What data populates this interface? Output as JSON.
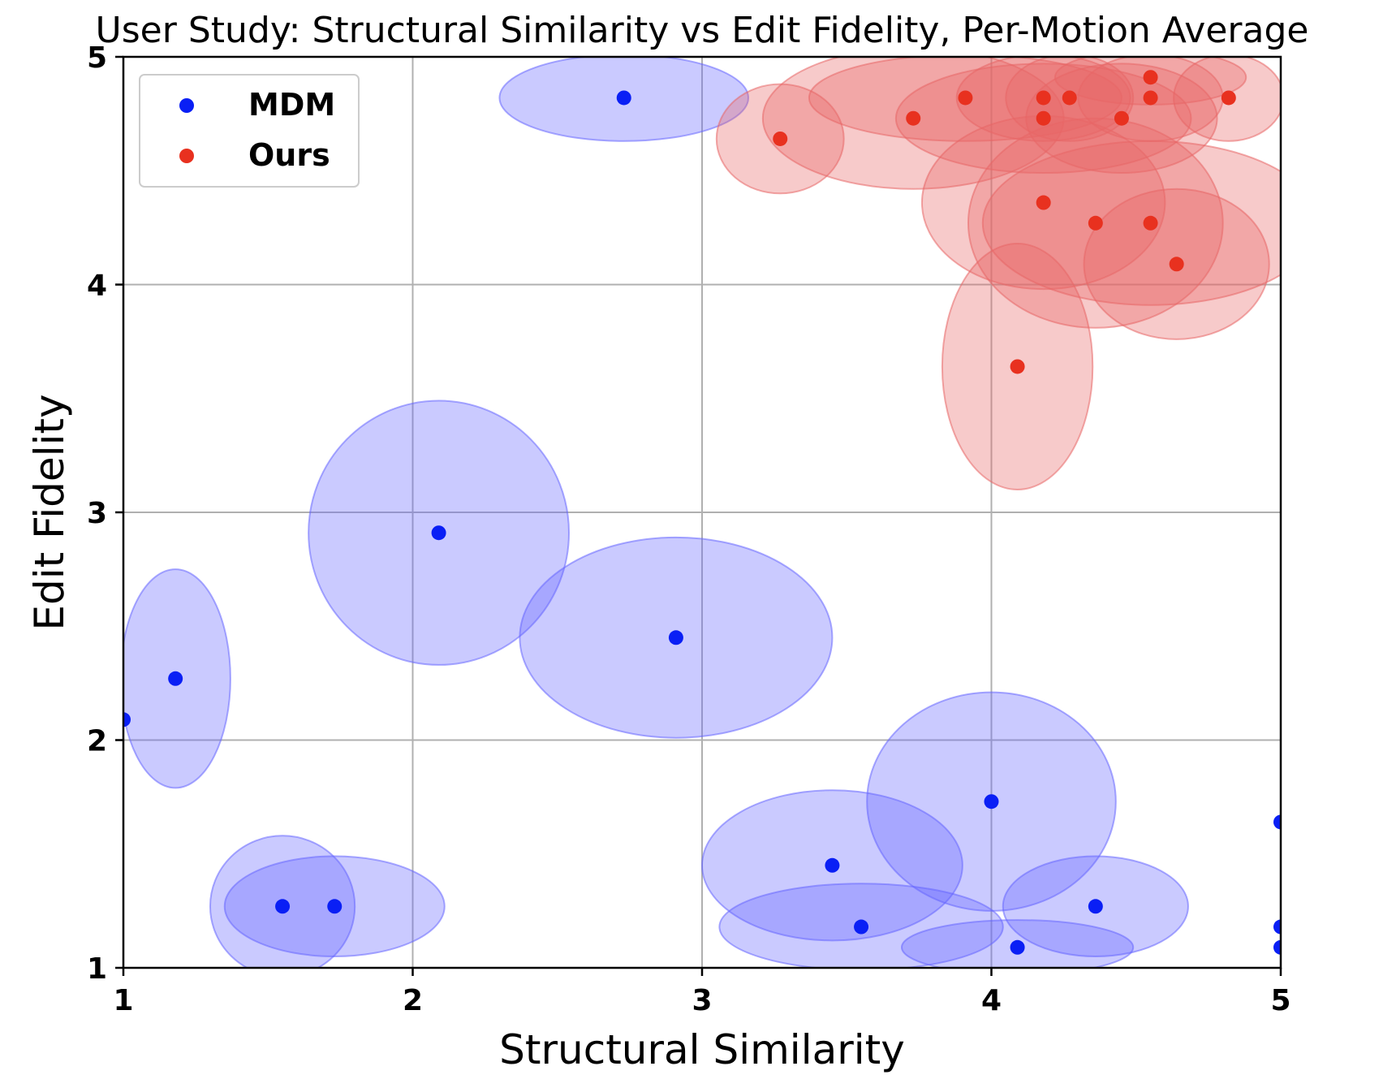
{
  "chart_data": {
    "type": "scatter",
    "title": "User Study: Structural Similarity vs Edit Fidelity, Per-Motion Average",
    "xlabel": "Structural Similarity",
    "ylabel": "Edit Fidelity",
    "xlim": [
      1,
      5
    ],
    "ylim": [
      1,
      5
    ],
    "xticks": [
      1,
      2,
      3,
      4,
      5
    ],
    "yticks": [
      1,
      2,
      3,
      4,
      5
    ],
    "grid": true,
    "legend_position": "top-left",
    "series": [
      {
        "name": "MDM",
        "color": "#0a1ff5",
        "ellipse_color": "#6666ff",
        "points": [
          {
            "x": 1.0,
            "y": 2.09,
            "sx": 0.0,
            "sy": 0.0
          },
          {
            "x": 1.18,
            "y": 2.27,
            "sx": 0.19,
            "sy": 0.48
          },
          {
            "x": 1.55,
            "y": 1.27,
            "sx": 0.25,
            "sy": 0.31
          },
          {
            "x": 1.73,
            "y": 1.27,
            "sx": 0.38,
            "sy": 0.22
          },
          {
            "x": 2.09,
            "y": 2.91,
            "sx": 0.45,
            "sy": 0.58
          },
          {
            "x": 2.73,
            "y": 4.82,
            "sx": 0.43,
            "sy": 0.19
          },
          {
            "x": 2.91,
            "y": 2.45,
            "sx": 0.54,
            "sy": 0.44
          },
          {
            "x": 3.45,
            "y": 1.45,
            "sx": 0.45,
            "sy": 0.33
          },
          {
            "x": 3.55,
            "y": 1.18,
            "sx": 0.49,
            "sy": 0.19
          },
          {
            "x": 4.0,
            "y": 1.73,
            "sx": 0.43,
            "sy": 0.48
          },
          {
            "x": 4.09,
            "y": 1.09,
            "sx": 0.4,
            "sy": 0.12
          },
          {
            "x": 4.36,
            "y": 1.27,
            "sx": 0.32,
            "sy": 0.22
          },
          {
            "x": 5.0,
            "y": 1.64,
            "sx": 0.0,
            "sy": 0.0
          },
          {
            "x": 5.0,
            "y": 1.18,
            "sx": 0.0,
            "sy": 0.0
          },
          {
            "x": 5.0,
            "y": 1.09,
            "sx": 0.0,
            "sy": 0.0
          }
        ]
      },
      {
        "name": "Ours",
        "color": "#e8311f",
        "ellipse_color": "#e86666",
        "points": [
          {
            "x": 3.27,
            "y": 4.64,
            "sx": 0.22,
            "sy": 0.24
          },
          {
            "x": 3.73,
            "y": 4.73,
            "sx": 0.52,
            "sy": 0.31
          },
          {
            "x": 3.91,
            "y": 4.82,
            "sx": 0.54,
            "sy": 0.19
          },
          {
            "x": 4.09,
            "y": 3.64,
            "sx": 0.26,
            "sy": 0.54
          },
          {
            "x": 4.18,
            "y": 4.82,
            "sx": 0.3,
            "sy": 0.19
          },
          {
            "x": 4.18,
            "y": 4.73,
            "sx": 0.51,
            "sy": 0.24
          },
          {
            "x": 4.18,
            "y": 4.36,
            "sx": 0.42,
            "sy": 0.38
          },
          {
            "x": 4.27,
            "y": 4.82,
            "sx": 0.22,
            "sy": 0.19
          },
          {
            "x": 4.36,
            "y": 4.27,
            "sx": 0.44,
            "sy": 0.46
          },
          {
            "x": 4.45,
            "y": 4.73,
            "sx": 0.33,
            "sy": 0.24
          },
          {
            "x": 4.55,
            "y": 4.91,
            "sx": 0.33,
            "sy": 0.12
          },
          {
            "x": 4.55,
            "y": 4.82,
            "sx": 0.25,
            "sy": 0.19
          },
          {
            "x": 4.55,
            "y": 4.27,
            "sx": 0.58,
            "sy": 0.36
          },
          {
            "x": 4.64,
            "y": 4.09,
            "sx": 0.32,
            "sy": 0.33
          },
          {
            "x": 4.82,
            "y": 4.82,
            "sx": 0.19,
            "sy": 0.19
          }
        ]
      }
    ]
  }
}
